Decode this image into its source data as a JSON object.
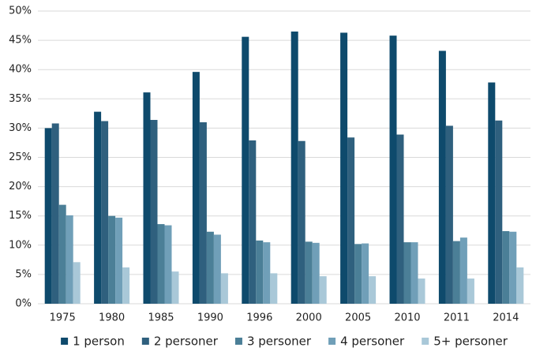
{
  "chart_data": {
    "type": "bar",
    "categories": [
      "1975",
      "1980",
      "1985",
      "1990",
      "1996",
      "2000",
      "2005",
      "2010",
      "2011",
      "2014"
    ],
    "series": [
      {
        "name": "1 person",
        "color": "#0e4a6c",
        "values": [
          30.0,
          32.8,
          36.1,
          39.6,
          45.6,
          46.5,
          46.3,
          45.8,
          43.2,
          37.8
        ]
      },
      {
        "name": "2 personer",
        "color": "#2f607e",
        "values": [
          30.8,
          31.2,
          31.4,
          31.0,
          27.9,
          27.8,
          28.4,
          28.9,
          30.4,
          31.3
        ]
      },
      {
        "name": "3 personer",
        "color": "#4b7f97",
        "values": [
          16.9,
          15.0,
          13.6,
          12.3,
          10.8,
          10.6,
          10.2,
          10.5,
          10.7,
          12.4
        ]
      },
      {
        "name": "4 personer",
        "color": "#709fb8",
        "values": [
          15.1,
          14.7,
          13.4,
          11.8,
          10.5,
          10.4,
          10.3,
          10.5,
          11.3,
          12.3
        ]
      },
      {
        "name": "5+ personer",
        "color": "#a9c8d8",
        "values": [
          7.1,
          6.2,
          5.5,
          5.2,
          5.2,
          4.7,
          4.7,
          4.3,
          4.3,
          6.2
        ]
      }
    ],
    "ylim": [
      0,
      50
    ],
    "yticks": [
      {
        "value": 0,
        "label": "0%"
      },
      {
        "value": 5,
        "label": "5%"
      },
      {
        "value": 10,
        "label": "10%"
      },
      {
        "value": 15,
        "label": "15%"
      },
      {
        "value": 20,
        "label": "20%"
      },
      {
        "value": 25,
        "label": "25%"
      },
      {
        "value": 30,
        "label": "30%"
      },
      {
        "value": 35,
        "label": "35%"
      },
      {
        "value": 40,
        "label": "40%"
      },
      {
        "value": 45,
        "label": "45%"
      },
      {
        "value": 50,
        "label": "50%"
      }
    ],
    "grid": true,
    "legend": "bottom"
  }
}
